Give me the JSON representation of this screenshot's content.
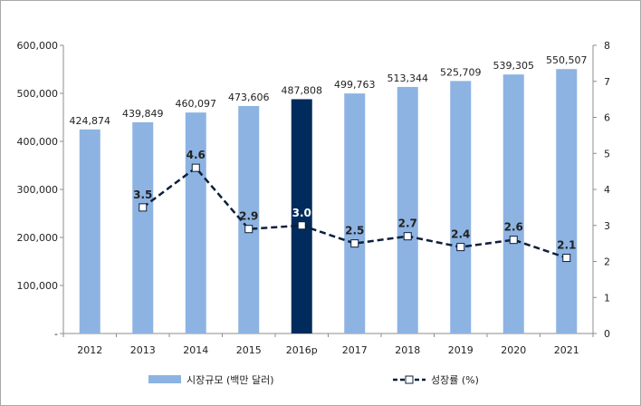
{
  "chart_data": {
    "type": "bar",
    "categories": [
      "2012",
      "2013",
      "2014",
      "2015",
      "2016p",
      "2017",
      "2018",
      "2019",
      "2020",
      "2021"
    ],
    "y_left": {
      "ylim": [
        0,
        600000
      ],
      "ticks": [
        "-",
        "100,000",
        "200,000",
        "300,000",
        "400,000",
        "500,000",
        "600,000"
      ]
    },
    "y_right": {
      "ylim": [
        0,
        8
      ],
      "ticks": [
        "0",
        "1",
        "2",
        "3",
        "4",
        "5",
        "6",
        "7",
        "8"
      ]
    },
    "series": [
      {
        "name": "시장규모 (백만 달러)",
        "type": "bar",
        "axis": "left",
        "color": "#8db3e2",
        "highlight": {
          "category": "2016p",
          "color": "#002b5c"
        },
        "values": [
          424874,
          439849,
          460097,
          473606,
          487808,
          499763,
          513344,
          525709,
          539305,
          550507
        ],
        "labels": [
          "424,874",
          "439,849",
          "460,097",
          "473,606",
          "487,808",
          "499,763",
          "513,344",
          "525,709",
          "539,305",
          "550,507"
        ]
      },
      {
        "name": "성장률 (%)",
        "type": "line",
        "axis": "right",
        "style": "dashed",
        "color": "#0d1f3c",
        "marker": "square-white",
        "values": [
          null,
          3.5,
          4.6,
          2.9,
          3.0,
          2.5,
          2.7,
          2.4,
          2.6,
          2.1
        ],
        "labels": [
          "",
          "3.5",
          "4.6",
          "2.9",
          "3.0",
          "2.5",
          "2.7",
          "2.4",
          "2.6",
          "2.1"
        ]
      }
    ],
    "grid": false,
    "legend": "bottom"
  }
}
